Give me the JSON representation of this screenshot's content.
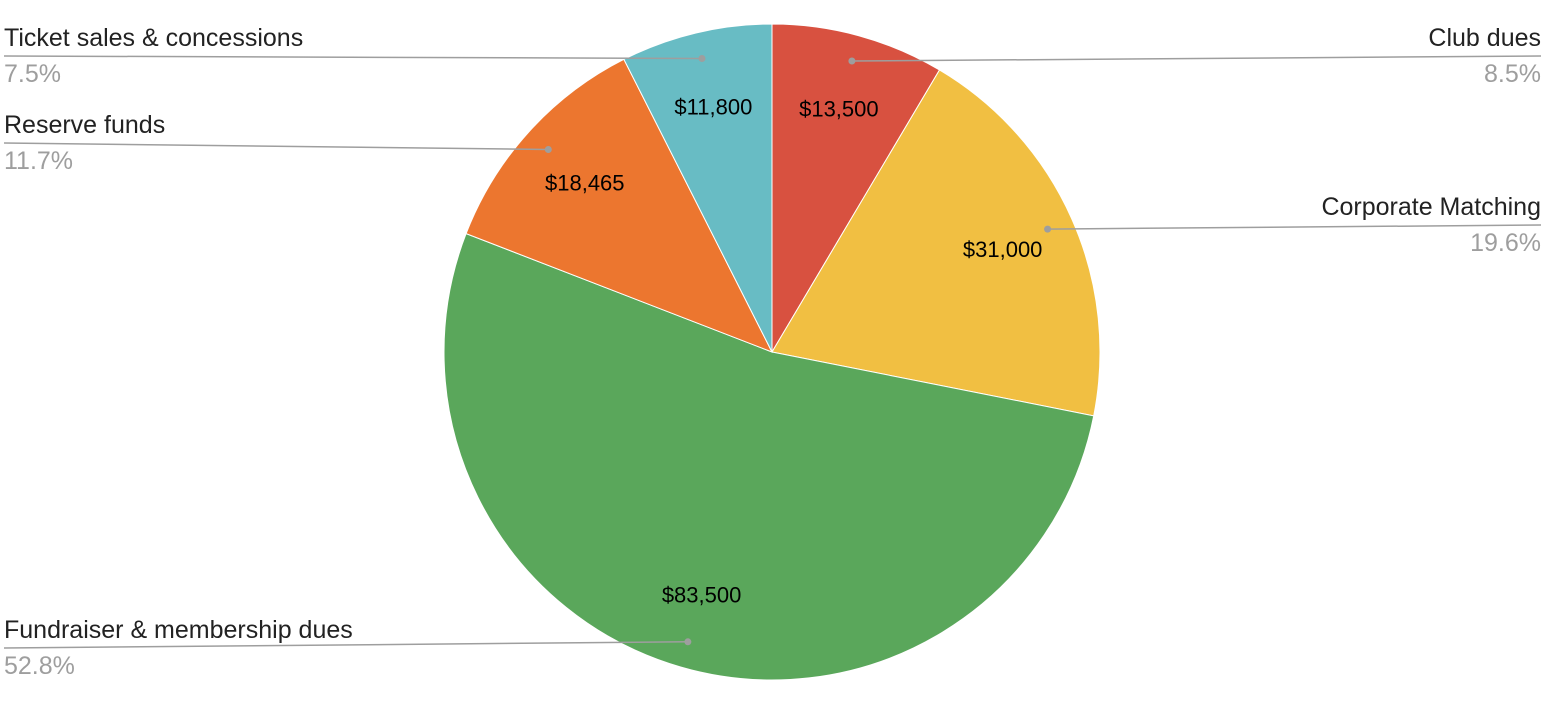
{
  "chart_data": {
    "type": "pie",
    "title": "",
    "slices": [
      {
        "label": "Club dues",
        "value": 13500,
        "value_label": "$13,500",
        "percent_label": "8.5%",
        "color": "#d85140"
      },
      {
        "label": "Corporate Matching",
        "value": 31000,
        "value_label": "$31,000",
        "percent_label": "19.6%",
        "color": "#f1bf42"
      },
      {
        "label": "Fundraiser & membership dues",
        "value": 83500,
        "value_label": "$83,500",
        "percent_label": "52.8%",
        "color": "#5aa75b"
      },
      {
        "label": "Reserve funds",
        "value": 18465,
        "value_label": "$18,465",
        "percent_label": "11.7%",
        "color": "#ec762f"
      },
      {
        "label": "Ticket sales & concessions",
        "value": 11800,
        "value_label": "$11,800",
        "percent_label": "7.5%",
        "color": "#68bcc4"
      }
    ],
    "legend": "callouts-left-right",
    "colors": {
      "leader_line": "#9e9e9e",
      "label_text": "#222222",
      "percent_text": "#9e9e9e",
      "border": "#ffffff"
    }
  }
}
